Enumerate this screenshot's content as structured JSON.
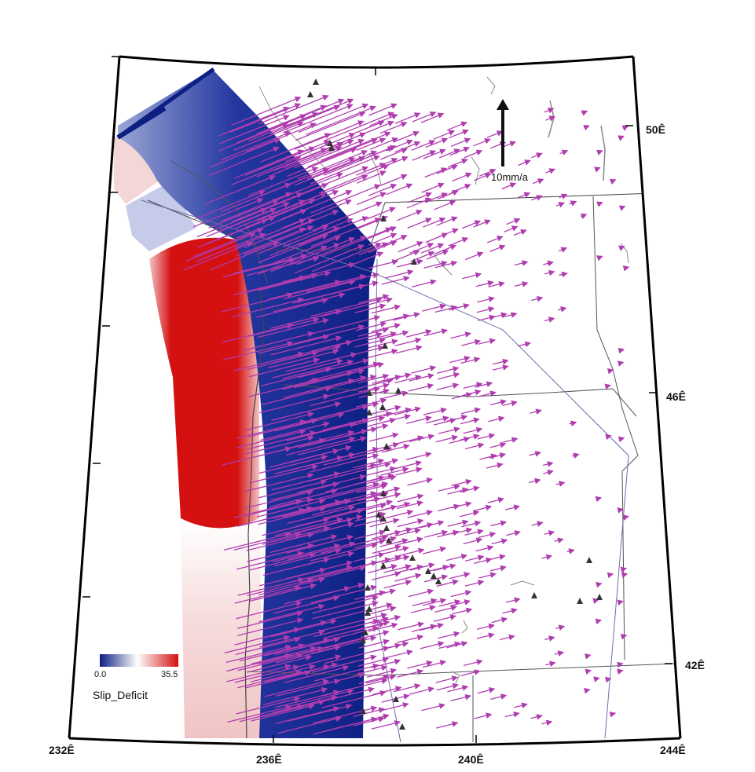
{
  "map": {
    "axis_labels": {
      "bottom": [
        "232Ê",
        "236Ê",
        "240Ê",
        "244Ê"
      ],
      "right": [
        "50Ê",
        "46Ê",
        "42Ê"
      ]
    },
    "scale_arrow": {
      "label": "10mm/a",
      "magnitude_mm_per_year": 10
    },
    "legend": {
      "min_label": "0.0",
      "max_label": "35.5",
      "title": "Slip_Deficit",
      "colors": [
        "#0d1f82",
        "#ffffff",
        "#d41010"
      ]
    },
    "colors": {
      "velocity_arrow": "#b03db0",
      "slip_high": "#d41010",
      "slip_low": "#0d1f82",
      "volcano_marker": "#333333",
      "boundary_line": "#555555",
      "state_border": "#6d6dab"
    },
    "icons": {
      "volcano": "triangle-icon",
      "velocity": "arrow-icon"
    }
  }
}
